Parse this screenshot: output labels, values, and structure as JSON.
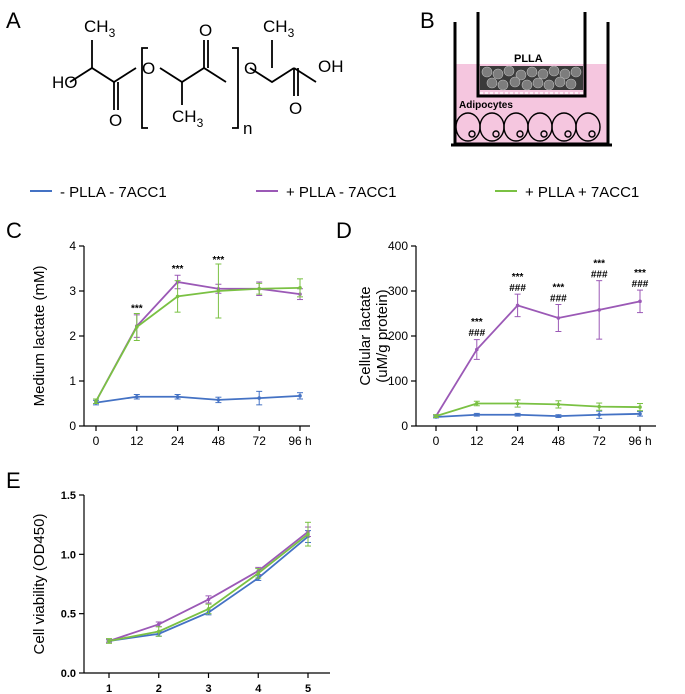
{
  "panels": {
    "a": "A",
    "b": "B",
    "c": "C",
    "d": "D",
    "e": "E"
  },
  "structure": {
    "ho": "HO",
    "ch3_left": "CH",
    "ch3_left_sub": "3",
    "o_carbonyl_1": "O",
    "o_ester_1": "O",
    "o_carbonyl_2": "O",
    "ch3_mid": "CH",
    "ch3_mid_sub": "3",
    "o_ester_2": "O",
    "ch3_right": "CH",
    "ch3_right_sub": "3",
    "oh": "OH",
    "o_carbonyl_3": "O",
    "n": "n"
  },
  "transwell": {
    "insert_label": "PLLA",
    "cells_label": "Adipocytes"
  },
  "legend": [
    {
      "label": "- PLLA - 7ACC1",
      "color": "#4472c4"
    },
    {
      "label": "+ PLLA - 7ACC1",
      "color": "#9b59b6"
    },
    {
      "label": "+ PLLA + 7ACC1",
      "color": "#7ac143"
    }
  ],
  "chart_data": [
    {
      "id": "C",
      "type": "line",
      "ylabel": "Medium lactate (mM)",
      "categories": [
        "0",
        "12",
        "24",
        "48",
        "72",
        "96 h"
      ],
      "ylim": [
        0,
        4
      ],
      "yticks": [
        "0",
        "1",
        "2",
        "3",
        "4"
      ],
      "series": [
        {
          "name": "- PLLA - 7ACC1",
          "color": "#4472c4",
          "values": [
            0.52,
            0.65,
            0.65,
            0.58,
            0.62,
            0.67
          ],
          "err": [
            0.05,
            0.05,
            0.05,
            0.06,
            0.15,
            0.07
          ]
        },
        {
          "name": "+ PLLA - 7ACC1",
          "color": "#9b59b6",
          "values": [
            0.55,
            2.22,
            3.2,
            3.05,
            3.05,
            2.93
          ],
          "err": [
            0.05,
            0.25,
            0.15,
            0.1,
            0.15,
            0.12
          ]
        },
        {
          "name": "+ PLLA + 7ACC1",
          "color": "#7ac143",
          "values": [
            0.55,
            2.2,
            2.88,
            3.0,
            3.05,
            3.07
          ],
          "err": [
            0.05,
            0.3,
            0.35,
            0.6,
            0.12,
            0.2
          ]
        }
      ],
      "annotations": [
        {
          "x": 1,
          "y": 2.55,
          "lines": [
            "***"
          ]
        },
        {
          "x": 2,
          "y": 3.42,
          "lines": [
            "***"
          ]
        },
        {
          "x": 3,
          "y": 3.62,
          "lines": [
            "***"
          ]
        }
      ]
    },
    {
      "id": "D",
      "type": "line",
      "ylabel": "Cellular lactate",
      "ylabel2": "(uM/g protein)",
      "categories": [
        "0",
        "12",
        "24",
        "48",
        "72",
        "96 h"
      ],
      "ylim": [
        0,
        400
      ],
      "yticks": [
        "0",
        "100",
        "200",
        "300",
        "400"
      ],
      "series": [
        {
          "name": "- PLLA - 7ACC1",
          "color": "#4472c4",
          "values": [
            20,
            25,
            25,
            22,
            25,
            27
          ],
          "err": [
            2,
            3,
            3,
            3,
            8,
            5
          ]
        },
        {
          "name": "+ PLLA - 7ACC1",
          "color": "#9b59b6",
          "values": [
            22,
            170,
            268,
            240,
            258,
            277
          ],
          "err": [
            3,
            22,
            25,
            30,
            65,
            25
          ]
        },
        {
          "name": "+ PLLA + 7ACC1",
          "color": "#7ac143",
          "values": [
            22,
            50,
            50,
            48,
            43,
            42
          ],
          "err": [
            3,
            5,
            8,
            8,
            8,
            8
          ]
        }
      ],
      "annotations": [
        {
          "x": 1,
          "y": 200,
          "lines": [
            "***",
            "###"
          ]
        },
        {
          "x": 2,
          "y": 300,
          "lines": [
            "***",
            "###"
          ]
        },
        {
          "x": 3,
          "y": 277,
          "lines": [
            "***",
            "###"
          ]
        },
        {
          "x": 4,
          "y": 330,
          "lines": [
            "***",
            "###"
          ]
        },
        {
          "x": 5,
          "y": 309,
          "lines": [
            "***",
            "###"
          ]
        }
      ]
    },
    {
      "id": "E",
      "type": "line",
      "ylabel": "Cell viability (OD450)",
      "categories": [
        "1",
        "2",
        "3",
        "4",
        "5"
      ],
      "ylim": [
        0,
        1.5
      ],
      "yticks": [
        "0.0",
        "0.5",
        "1.0",
        "1.5"
      ],
      "series": [
        {
          "name": "- PLLA - 7ACC1",
          "color": "#4472c4",
          "values": [
            0.27,
            0.33,
            0.51,
            0.8,
            1.15
          ],
          "err": [
            0.01,
            0.02,
            0.02,
            0.02,
            0.05
          ]
        },
        {
          "name": "+ PLLA - 7ACC1",
          "color": "#9b59b6",
          "values": [
            0.27,
            0.41,
            0.62,
            0.86,
            1.19
          ],
          "err": [
            0.01,
            0.02,
            0.03,
            0.03,
            0.04
          ]
        },
        {
          "name": "+ PLLA + 7ACC1",
          "color": "#7ac143",
          "values": [
            0.27,
            0.35,
            0.54,
            0.84,
            1.17
          ],
          "err": [
            0.02,
            0.04,
            0.04,
            0.04,
            0.1
          ]
        }
      ]
    }
  ]
}
